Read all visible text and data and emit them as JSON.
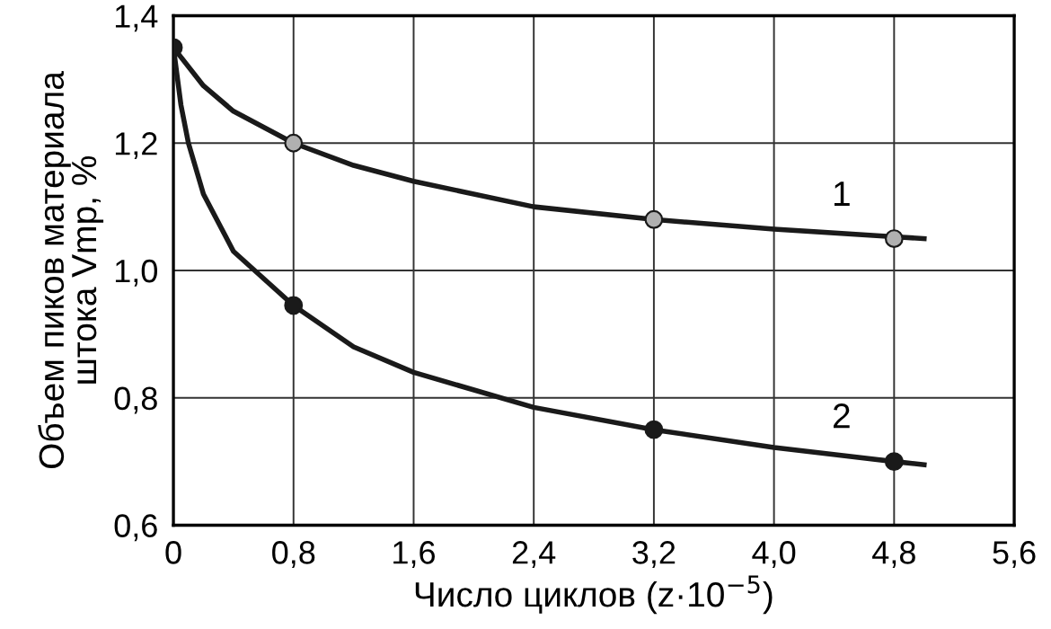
{
  "chart_data": {
    "type": "line",
    "xlabel": "Число циклов (z·10$^{−5}$)",
    "ylabel": "Объем пиков материала\nштока Vmp, %",
    "xlim": [
      0,
      5.6
    ],
    "ylim": [
      0.6,
      1.4
    ],
    "xticks": [
      0,
      {
        "value": 0.8,
        "label": "0,8"
      },
      {
        "value": 1.6,
        "label": "1,6"
      },
      {
        "value": 2.4,
        "label": "2,4"
      },
      {
        "value": 3.2,
        "label": "3,2"
      },
      {
        "value": 4.0,
        "label": "4,0"
      },
      {
        "value": 4.8,
        "label": "4,8"
      },
      {
        "value": 5.6,
        "label": "5,6"
      }
    ],
    "yticks": [
      {
        "value": 0.6,
        "label": "0,6"
      },
      {
        "value": 0.8,
        "label": "0,8"
      },
      {
        "value": 1.0,
        "label": "1,0"
      },
      {
        "value": 1.2,
        "label": "1,2"
      },
      {
        "value": 1.4,
        "label": "1,4"
      }
    ],
    "grid": true,
    "legend": false,
    "series": [
      {
        "color": "#1a1a1a",
        "marker": "none",
        "x": [
          0,
          0.2,
          0.4,
          0.8,
          1.2,
          1.6,
          2.4,
          3.2,
          4.0,
          4.8,
          5.0
        ],
        "values": [
          1.35,
          1.29,
          1.25,
          1.2,
          1.165,
          1.14,
          1.1,
          1.08,
          1.065,
          1.053,
          1.05
        ]
      },
      {
        "color": "#1a1a1a",
        "marker": "none",
        "x": [
          0,
          0.05,
          0.1,
          0.2,
          0.4,
          0.8,
          1.2,
          1.6,
          2.4,
          3.2,
          4.0,
          4.8,
          5.0
        ],
        "values": [
          1.35,
          1.26,
          1.2,
          1.12,
          1.03,
          0.945,
          0.88,
          0.84,
          0.785,
          0.75,
          0.722,
          0.7,
          0.695
        ]
      },
      {
        "type": "scatter",
        "color": "#b0b0b0",
        "marker": "circle",
        "x": [
          0.8,
          3.2,
          4.8
        ],
        "values": [
          1.2,
          1.08,
          1.05
        ]
      },
      {
        "type": "scatter",
        "color": "#1a1a1a",
        "marker": "circle",
        "x": [
          0,
          0.8,
          3.2,
          4.8
        ],
        "values": [
          1.35,
          0.945,
          0.75,
          0.7
        ]
      }
    ],
    "annotations": [
      {
        "text": "1",
        "x": 4.45,
        "y": 1.059
      },
      {
        "text": "2",
        "x": 4.45,
        "y": 0.71
      }
    ]
  }
}
